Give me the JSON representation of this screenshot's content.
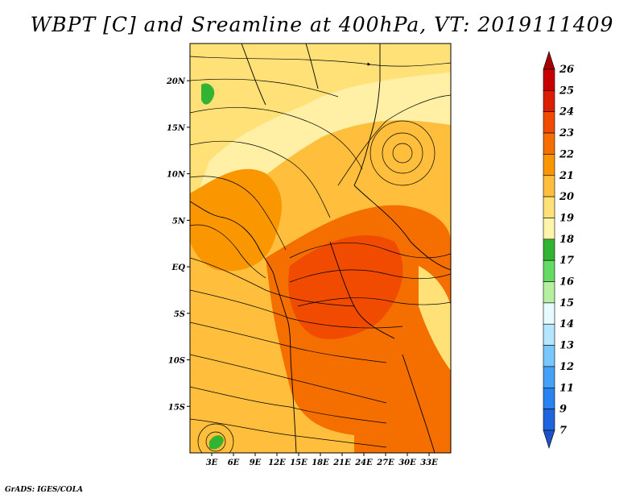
{
  "title": "WBPT [C] and Sreamline at 400hPa, VT: 2019111409",
  "footer": "GrADS: IGES/COLA",
  "map": {
    "lon_range": [
      0,
      36
    ],
    "lat_range": [
      -20,
      24
    ],
    "lon_ticks": [
      {
        "value": 3,
        "label": "3E"
      },
      {
        "value": 6,
        "label": "6E"
      },
      {
        "value": 9,
        "label": "9E"
      },
      {
        "value": 12,
        "label": "12E"
      },
      {
        "value": 15,
        "label": "15E"
      },
      {
        "value": 18,
        "label": "18E"
      },
      {
        "value": 21,
        "label": "21E"
      },
      {
        "value": 24,
        "label": "24E"
      },
      {
        "value": 27,
        "label": "27E"
      },
      {
        "value": 30,
        "label": "30E"
      },
      {
        "value": 33,
        "label": "33E"
      }
    ],
    "lat_ticks": [
      {
        "value": 20,
        "label": "20N"
      },
      {
        "value": 15,
        "label": "15N"
      },
      {
        "value": 10,
        "label": "10N"
      },
      {
        "value": 5,
        "label": "5N"
      },
      {
        "value": 0,
        "label": "EQ"
      },
      {
        "value": -5,
        "label": "5S"
      },
      {
        "value": -10,
        "label": "10S"
      },
      {
        "value": -15,
        "label": "15S"
      }
    ]
  },
  "colorbar": {
    "levels": [
      {
        "label": "26",
        "color": "#a50000"
      },
      {
        "label": "25",
        "color": "#c80000"
      },
      {
        "label": "24",
        "color": "#dc1e00"
      },
      {
        "label": "23",
        "color": "#f04b00"
      },
      {
        "label": "22",
        "color": "#f56e00"
      },
      {
        "label": "21",
        "color": "#fa9600"
      },
      {
        "label": "20",
        "color": "#ffbe3c"
      },
      {
        "label": "19",
        "color": "#ffe178"
      },
      {
        "label": "18",
        "color": "#fff5aa"
      },
      {
        "label": "17",
        "color": "#32b432"
      },
      {
        "label": "16",
        "color": "#64dc64"
      },
      {
        "label": "15",
        "color": "#b4f0a0"
      },
      {
        "label": "14",
        "color": "#e6faff"
      },
      {
        "label": "13",
        "color": "#b4e6ff"
      },
      {
        "label": "12",
        "color": "#78c8ff"
      },
      {
        "label": "11",
        "color": "#46a0f5"
      },
      {
        "label": "9",
        "color": "#2882f0"
      },
      {
        "label": "7",
        "color": "#1e64dc"
      }
    ],
    "bottom_color": "#1e50c8"
  }
}
